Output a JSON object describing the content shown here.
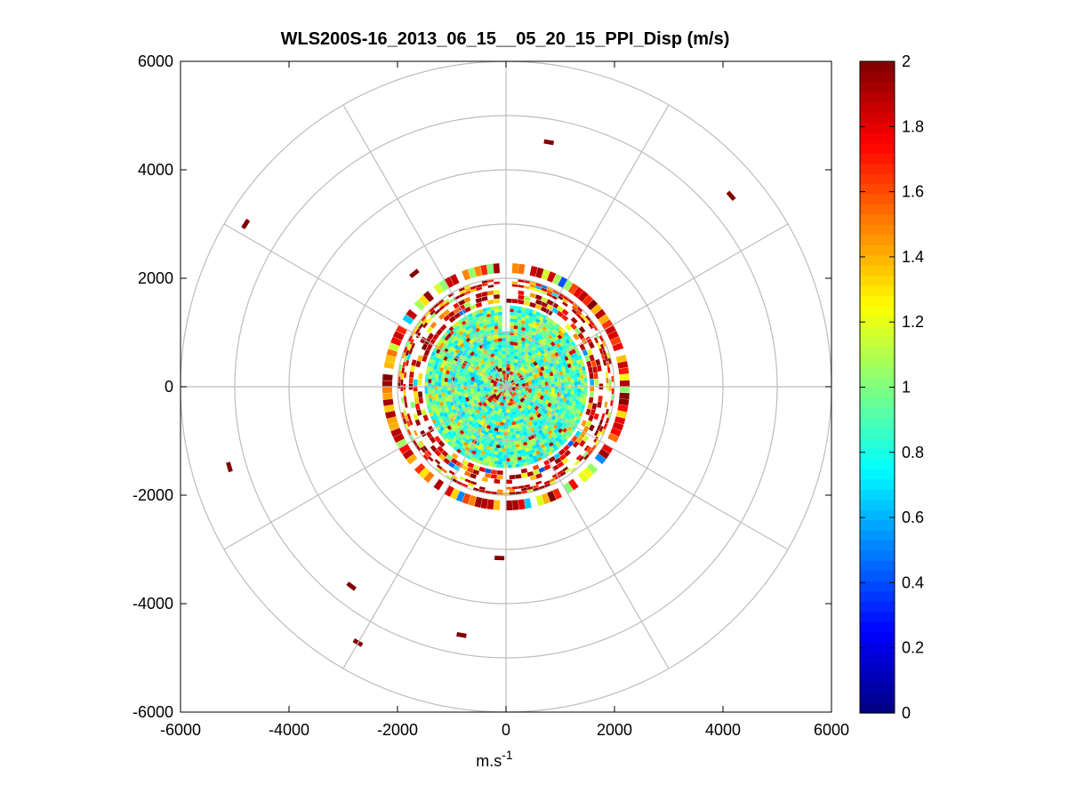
{
  "chart_data": {
    "type": "heatmap",
    "subtype": "polar-ppi",
    "title": "WLS200S-16_2013_06_15__05_20_15_PPI_Disp (m/s)",
    "xlabel": "m.s",
    "xlabel_superscript": "-1",
    "ylabel": "",
    "xlim": [
      -6000,
      6000
    ],
    "ylim": [
      -6000,
      6000
    ],
    "xticks": [
      "-6000",
      "-4000",
      "-2000",
      "0",
      "2000",
      "4000",
      "6000"
    ],
    "yticks": [
      "6000",
      "4000",
      "2000",
      "0",
      "-2000",
      "-4000",
      "-6000"
    ],
    "polar_rings_m": [
      1000,
      2000,
      3000,
      4000,
      5000,
      6000
    ],
    "spoke_angles_deg": [
      0,
      30,
      60,
      90,
      120,
      150,
      180,
      210,
      240,
      270,
      300,
      330
    ],
    "grid": true,
    "colormap": "jet",
    "colorbar": {
      "range": [
        0,
        2
      ],
      "ticks": [
        "2",
        "1.8",
        "1.6",
        "1.4",
        "1.2",
        "1",
        "0.8",
        "0.6",
        "0.4",
        "0.2",
        "0"
      ]
    },
    "data_region": {
      "dense_inner_disk_radius_m": 1450,
      "ring_bands_m": [
        [
          1550,
          1800
        ],
        [
          1850,
          2000
        ],
        [
          2100,
          2300
        ]
      ],
      "gap_azimuth_deg": [
        -2,
        2
      ]
    },
    "outlier_segments": [
      {
        "x": 790,
        "y": 4510,
        "value": 2.0
      },
      {
        "x": 4150,
        "y": 3520,
        "value": 2.0
      },
      {
        "x": -4800,
        "y": 3000,
        "value": 2.0
      },
      {
        "x": -5100,
        "y": -1480,
        "value": 2.0
      },
      {
        "x": -2850,
        "y": -3680,
        "value": 2.0
      },
      {
        "x": -2730,
        "y": -4720,
        "value": 2.0
      },
      {
        "x": -820,
        "y": -4580,
        "value": 2.0
      },
      {
        "x": -120,
        "y": -3160,
        "value": 2.0
      },
      {
        "x": -1690,
        "y": 2090,
        "value": 2.0
      }
    ]
  }
}
